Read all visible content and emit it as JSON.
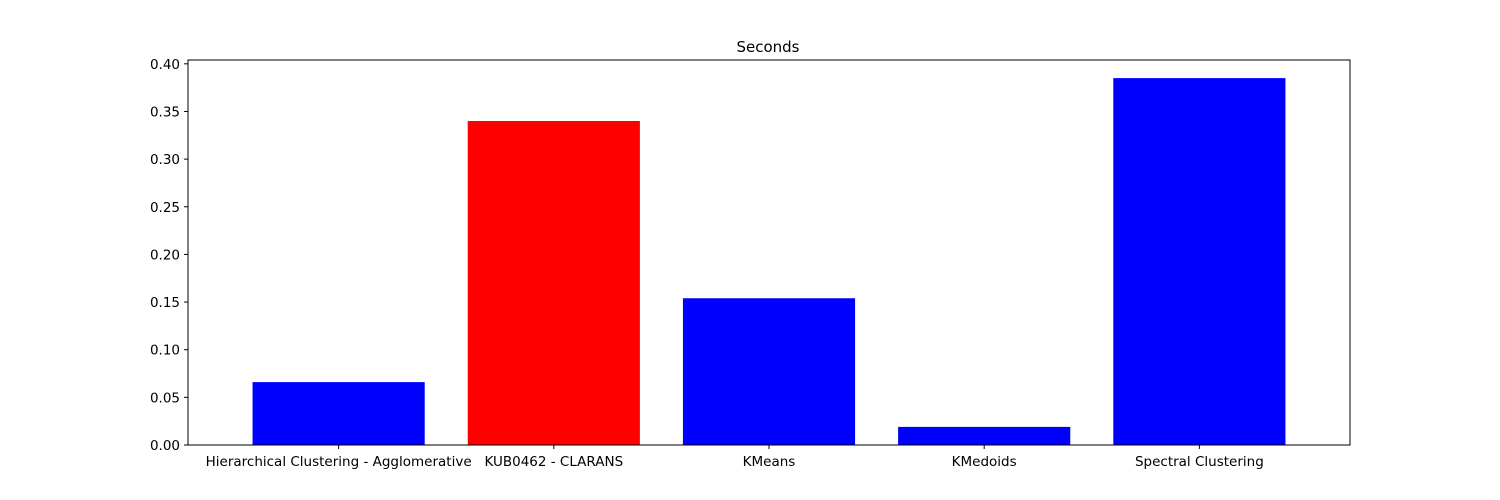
{
  "chart_data": {
    "type": "bar",
    "title": "Seconds",
    "xlabel": "",
    "ylabel": "",
    "categories": [
      "Hierarchical Clustering - Agglomerative",
      "KUB0462 - CLARANS",
      "KMeans",
      "KMedoids",
      "Spectral Clustering"
    ],
    "values": [
      0.066,
      0.34,
      0.154,
      0.019,
      0.385
    ],
    "bar_colors": [
      "#0000ff",
      "#ff0000",
      "#0000ff",
      "#0000ff",
      "#0000ff"
    ],
    "ylim": [
      0,
      0.404
    ],
    "yticks": [
      0.0,
      0.05,
      0.1,
      0.15,
      0.2,
      0.25,
      0.3,
      0.35,
      0.4
    ],
    "ytick_labels": [
      "0.00",
      "0.05",
      "0.10",
      "0.15",
      "0.20",
      "0.25",
      "0.30",
      "0.35",
      "0.40"
    ],
    "grid": false,
    "legend": "none"
  }
}
